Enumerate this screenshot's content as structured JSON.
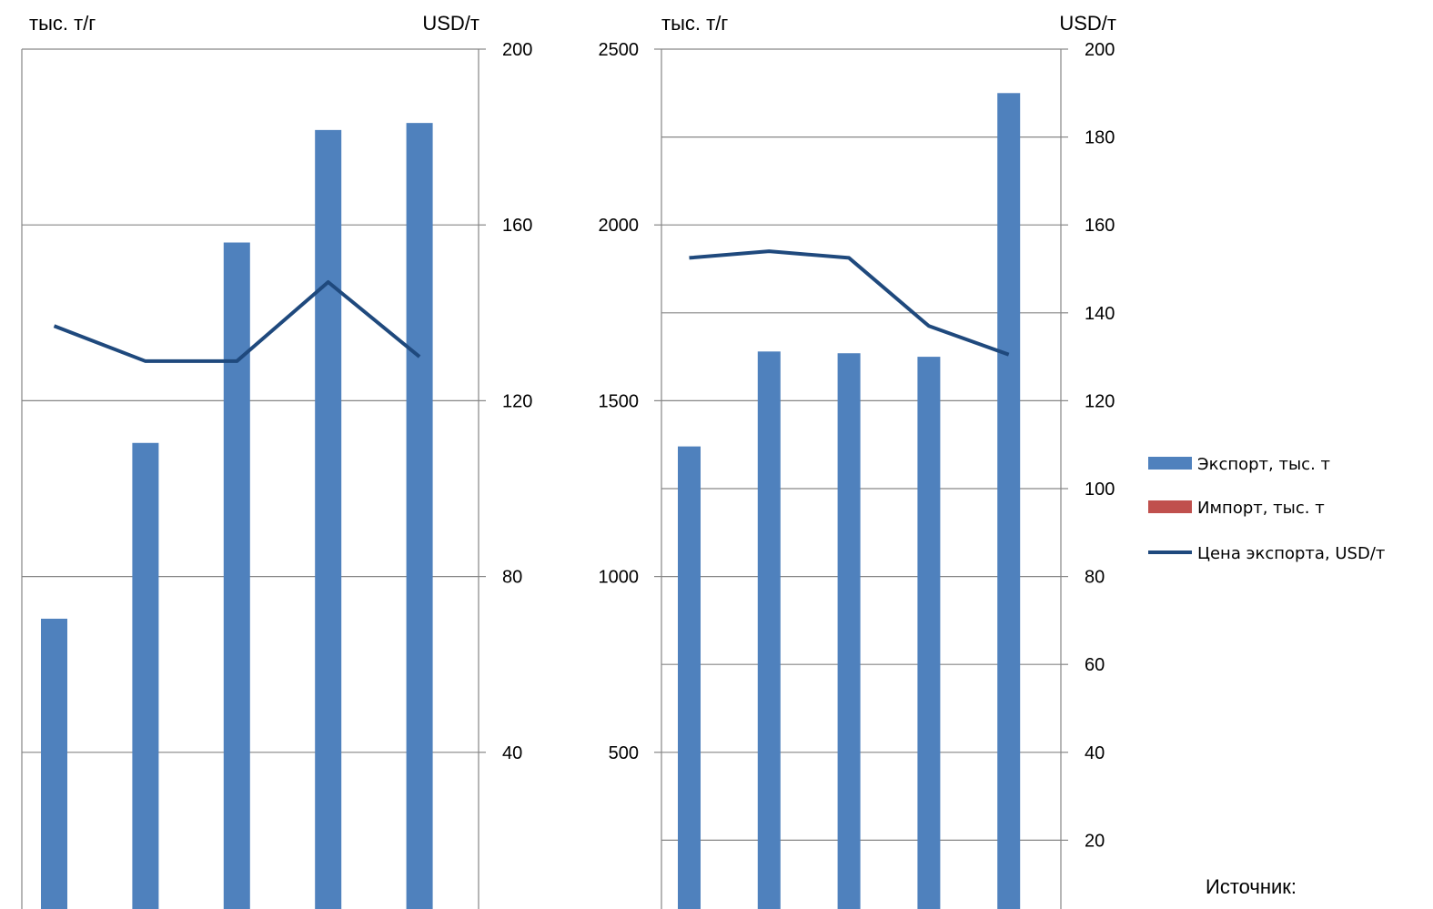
{
  "chart_data": [
    {
      "type": "bar",
      "left_unit": "тыс. т/г",
      "right_unit": "USD/т",
      "left_ylim": [
        0,
        2500
      ],
      "right_ylim": [
        0,
        200
      ],
      "right_tick_labels": [
        "40",
        "80",
        "120",
        "160",
        "200"
      ],
      "grid": true,
      "series": [
        {
          "name": "Экспорт, тыс. т",
          "axis": "left",
          "values": [
            880,
            1380,
            1950,
            2270,
            2290
          ]
        },
        {
          "name": "Импорт, тыс. т",
          "axis": "left",
          "values": [
            0,
            10,
            45,
            38,
            20
          ]
        },
        {
          "name": "Цена экспорта, USD/т",
          "axis": "right",
          "type": "line",
          "values": [
            137,
            129,
            129,
            147,
            130
          ]
        }
      ]
    },
    {
      "type": "bar",
      "left_unit": "тыс. т/г",
      "right_unit": "USD/т",
      "left_ylim": [
        0,
        2500
      ],
      "right_ylim": [
        0,
        200
      ],
      "left_tick_labels": [
        "500",
        "1000",
        "1500",
        "2000",
        "2500"
      ],
      "right_tick_labels": [
        "20",
        "40",
        "60",
        "80",
        "100",
        "120",
        "140",
        "160",
        "180",
        "200"
      ],
      "grid": true,
      "series": [
        {
          "name": "Экспорт, тыс. т",
          "axis": "left",
          "values": [
            1370,
            1640,
            1635,
            1625,
            2375
          ]
        },
        {
          "name": "Цена экспорта, USD/т",
          "axis": "right",
          "type": "line",
          "values": [
            152.5,
            154,
            152.5,
            137,
            130.5
          ]
        }
      ]
    }
  ],
  "legend": {
    "placement": "right",
    "items": [
      {
        "label": "Экспорт, тыс. т",
        "color": "#4F81BD",
        "kind": "bar"
      },
      {
        "label": "Импорт, тыс. т",
        "color": "#C0504D",
        "kind": "bar"
      },
      {
        "label": "Цена экспорта, USD/т",
        "color": "#1F497D",
        "kind": "line"
      }
    ]
  },
  "colors": {
    "export": "#4F81BD",
    "import": "#C0504D",
    "price": "#1F497D",
    "grid": "#868686"
  },
  "source_label": "Источник:"
}
